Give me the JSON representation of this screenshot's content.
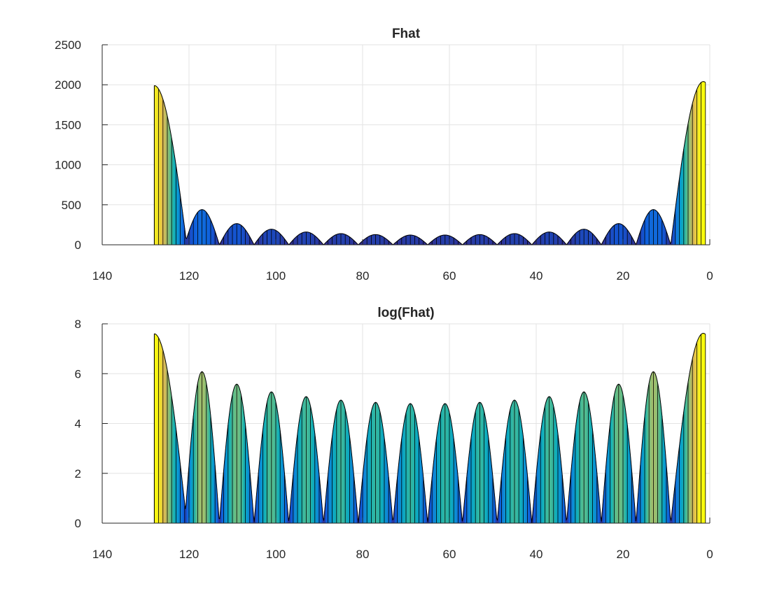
{
  "chart_data": [
    {
      "type": "area",
      "title": "Fhat",
      "xlabel": "",
      "ylabel": "",
      "x_reversed": true,
      "xlim": [
        0,
        140
      ],
      "ylim": [
        0,
        2500
      ],
      "xticks": [
        "140",
        "120",
        "100",
        "80",
        "60",
        "40",
        "20",
        "0"
      ],
      "yticks": [
        "0",
        "500",
        "1000",
        "1500",
        "2000",
        "2500"
      ],
      "grid": true,
      "colormap": "parula",
      "fill_nonzero_range": [
        1,
        128
      ],
      "lobes": [
        {
          "center": 1.5,
          "peak": 2040,
          "width": 15
        },
        {
          "center": 13,
          "peak": 440,
          "width": 8
        },
        {
          "center": 21,
          "peak": 265,
          "width": 8
        },
        {
          "center": 29,
          "peak": 195,
          "width": 8
        },
        {
          "center": 37,
          "peak": 160,
          "width": 8
        },
        {
          "center": 45,
          "peak": 140,
          "width": 8
        },
        {
          "center": 53,
          "peak": 128,
          "width": 8
        },
        {
          "center": 61,
          "peak": 122,
          "width": 8
        },
        {
          "center": 69,
          "peak": 122,
          "width": 8
        },
        {
          "center": 77,
          "peak": 128,
          "width": 8
        },
        {
          "center": 85,
          "peak": 140,
          "width": 8
        },
        {
          "center": 93,
          "peak": 160,
          "width": 8
        },
        {
          "center": 101,
          "peak": 195,
          "width": 8
        },
        {
          "center": 109,
          "peak": 265,
          "width": 8
        },
        {
          "center": 117,
          "peak": 440,
          "width": 8
        },
        {
          "center": 128,
          "peak": 1990,
          "width": 15
        }
      ]
    },
    {
      "type": "area",
      "title": "log(Fhat)",
      "xlabel": "",
      "ylabel": "",
      "x_reversed": true,
      "xlim": [
        0,
        140
      ],
      "ylim": [
        0,
        8
      ],
      "xticks": [
        "140",
        "120",
        "100",
        "80",
        "60",
        "40",
        "20",
        "0"
      ],
      "yticks": [
        "0",
        "2",
        "4",
        "6",
        "8"
      ],
      "grid": true,
      "colormap": "parula",
      "fill_nonzero_range": [
        1,
        128
      ],
      "lobes": [
        {
          "center": 1.5,
          "peak": 7.62,
          "width": 15
        },
        {
          "center": 13,
          "peak": 6.08,
          "width": 8
        },
        {
          "center": 21,
          "peak": 5.58,
          "width": 8
        },
        {
          "center": 29,
          "peak": 5.27,
          "width": 8
        },
        {
          "center": 37,
          "peak": 5.08,
          "width": 8
        },
        {
          "center": 45,
          "peak": 4.94,
          "width": 8
        },
        {
          "center": 53,
          "peak": 4.85,
          "width": 8
        },
        {
          "center": 61,
          "peak": 4.8,
          "width": 8
        },
        {
          "center": 69,
          "peak": 4.8,
          "width": 8
        },
        {
          "center": 77,
          "peak": 4.85,
          "width": 8
        },
        {
          "center": 85,
          "peak": 4.94,
          "width": 8
        },
        {
          "center": 93,
          "peak": 5.08,
          "width": 8
        },
        {
          "center": 101,
          "peak": 5.27,
          "width": 8
        },
        {
          "center": 109,
          "peak": 5.58,
          "width": 8
        },
        {
          "center": 117,
          "peak": 6.08,
          "width": 8
        },
        {
          "center": 128,
          "peak": 7.6,
          "width": 15
        }
      ]
    }
  ]
}
